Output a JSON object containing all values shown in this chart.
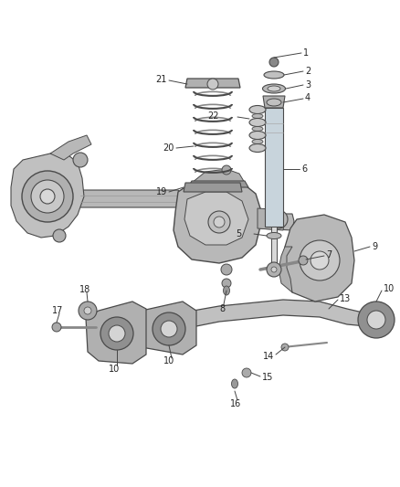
{
  "bg_color": "#ffffff",
  "lc": "#4a4a4a",
  "tc": "#222222",
  "fig_width": 4.38,
  "fig_height": 5.33,
  "dpi": 100,
  "gray_light": "#cccccc",
  "gray_mid": "#aaaaaa",
  "gray_dark": "#888888",
  "gray_darker": "#666666",
  "shock_color": "#c8d0d8",
  "spring_color": "#999999",
  "axle_color": "#b0b0b0",
  "knuckle_color": "#b8b8b8",
  "arm_color": "#c0c0c0",
  "bushing_outer": "#909090",
  "bushing_inner": "#d4d4d4",
  "bracket_color": "#aaaaaa"
}
